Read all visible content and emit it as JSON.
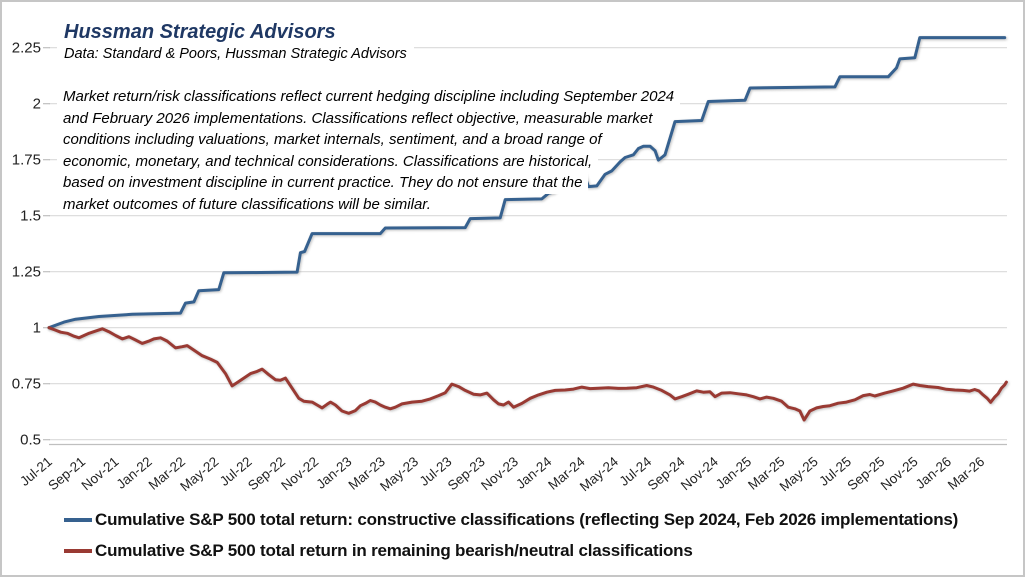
{
  "header": {
    "title": "Hussman Strategic Advisors",
    "subtitle": "Data: Standard & Poors, Hussman Strategic Advisors"
  },
  "annotation": {
    "lines": [
      "Market return/risk classifications reflect current hedging discipline including September 2024",
      "and February 2026 implementations. Classifications reflect objective, measurable market",
      "conditions including valuations, market internals, sentiment, and a broad range of",
      "economic, monetary, and technical considerations. Classifications are historical,",
      "based on investment discipline in current practice. They do not ensure that the",
      "market outcomes of future classifications will be similar."
    ]
  },
  "legend": {
    "items": [
      {
        "key": "constructive",
        "label": "Cumulative S&P 500 total return: constructive classifications (reflecting Sep 2024, Feb 2026 implementations)",
        "color": "#36618F"
      },
      {
        "key": "bearish_neutral",
        "label": "Cumulative S&P 500 total return in remaining bearish/neutral classifications",
        "color": "#993A33"
      }
    ]
  },
  "colors": {
    "accent_blue": "#36618F",
    "accent_red": "#993A33",
    "title_navy": "#1F3864",
    "gridline": "#DADADA",
    "axis_line": "#BFBFBF",
    "tick_mark": "#BFBFBF",
    "axis_text": "#222222",
    "background": "#FFFFFF"
  },
  "chart_data": {
    "type": "line",
    "title": "Hussman Strategic Advisors",
    "subtitle": "Data: Standard & Poors, Hussman Strategic Advisors",
    "xlabel": "",
    "ylabel": "",
    "x_unit": "months since Jul-2021 (0 = Jul-21)",
    "x_tick_month_step": 2,
    "x_tick_labels": [
      "Jul-21",
      "Sep-21",
      "Nov-21",
      "Jan-22",
      "Mar-22",
      "May-22",
      "Jul-22",
      "Sep-22",
      "Nov-22",
      "Jan-23",
      "Mar-23",
      "May-23",
      "Jul-23",
      "Sep-23",
      "Nov-23",
      "Jan-24",
      "Mar-24",
      "May-24",
      "Jul-24",
      "Sep-24",
      "Nov-24",
      "Jan-25",
      "Mar-25",
      "May-25",
      "Jul-25",
      "Sep-25",
      "Nov-25",
      "Jan-26",
      "Mar-26"
    ],
    "y_ticks": [
      0.5,
      0.75,
      1,
      1.25,
      1.5,
      1.75,
      2,
      2.25
    ],
    "ylim": [
      0.5,
      2.32
    ],
    "xlim_months": [
      0,
      57.8
    ],
    "grid": "horizontal",
    "legend_position": "bottom-left",
    "series": [
      {
        "key": "constructive",
        "name": "Cumulative S&P 500 total return: constructive classifications (reflecting Sep 2024, Feb 2026 implementations)",
        "color": "#36618F",
        "points": [
          [
            0,
            1.0
          ],
          [
            0.9,
            1.025
          ],
          [
            1.6,
            1.038
          ],
          [
            3,
            1.05
          ],
          [
            5,
            1.06
          ],
          [
            7.9,
            1.065
          ],
          [
            8.2,
            1.11
          ],
          [
            8.7,
            1.115
          ],
          [
            9,
            1.165
          ],
          [
            10.2,
            1.17
          ],
          [
            10.5,
            1.245
          ],
          [
            14.9,
            1.248
          ],
          [
            15.1,
            1.335
          ],
          [
            15.35,
            1.34
          ],
          [
            15.8,
            1.42
          ],
          [
            19.9,
            1.42
          ],
          [
            20.2,
            1.445
          ],
          [
            25,
            1.447
          ],
          [
            25.3,
            1.487
          ],
          [
            27.1,
            1.49
          ],
          [
            27.4,
            1.572
          ],
          [
            29.6,
            1.575
          ],
          [
            30,
            1.6
          ],
          [
            30.3,
            1.605
          ],
          [
            30.8,
            1.652
          ],
          [
            31.3,
            1.658
          ],
          [
            31.8,
            1.692
          ],
          [
            32.1,
            1.692
          ],
          [
            32.4,
            1.63
          ],
          [
            32.9,
            1.633
          ],
          [
            33.4,
            1.685
          ],
          [
            33.8,
            1.7
          ],
          [
            34.3,
            1.74
          ],
          [
            34.6,
            1.76
          ],
          [
            35.1,
            1.772
          ],
          [
            35.4,
            1.8
          ],
          [
            35.7,
            1.81
          ],
          [
            36.1,
            1.81
          ],
          [
            36.4,
            1.79
          ],
          [
            36.6,
            1.748
          ],
          [
            36.8,
            1.76
          ],
          [
            37,
            1.772
          ],
          [
            37.6,
            1.92
          ],
          [
            39.2,
            1.925
          ],
          [
            39.6,
            2.01
          ],
          [
            41.8,
            2.015
          ],
          [
            42.1,
            2.07
          ],
          [
            47.2,
            2.075
          ],
          [
            47.5,
            2.12
          ],
          [
            50.4,
            2.12
          ],
          [
            50.9,
            2.16
          ],
          [
            51.1,
            2.2
          ],
          [
            52,
            2.205
          ],
          [
            52.3,
            2.295
          ],
          [
            57.4,
            2.295
          ]
        ]
      },
      {
        "key": "bearish_neutral",
        "name": "Cumulative S&P 500 total return in remaining bearish/neutral classifications",
        "color": "#993A33",
        "points": [
          [
            0,
            1.0
          ],
          [
            0.35,
            0.99
          ],
          [
            0.7,
            0.98
          ],
          [
            1.1,
            0.975
          ],
          [
            1.5,
            0.962
          ],
          [
            1.8,
            0.955
          ],
          [
            2.1,
            0.965
          ],
          [
            2.4,
            0.975
          ],
          [
            2.8,
            0.985
          ],
          [
            3.2,
            0.995
          ],
          [
            3.6,
            0.982
          ],
          [
            4,
            0.965
          ],
          [
            4.4,
            0.95
          ],
          [
            4.8,
            0.96
          ],
          [
            5.2,
            0.945
          ],
          [
            5.6,
            0.93
          ],
          [
            6,
            0.94
          ],
          [
            6.3,
            0.95
          ],
          [
            6.7,
            0.955
          ],
          [
            7.1,
            0.94
          ],
          [
            7.6,
            0.91
          ],
          [
            8,
            0.915
          ],
          [
            8.3,
            0.92
          ],
          [
            8.7,
            0.9
          ],
          [
            9.2,
            0.875
          ],
          [
            9.7,
            0.86
          ],
          [
            10.1,
            0.845
          ],
          [
            10.6,
            0.795
          ],
          [
            11,
            0.74
          ],
          [
            11.3,
            0.755
          ],
          [
            11.7,
            0.775
          ],
          [
            12.1,
            0.795
          ],
          [
            12.5,
            0.805
          ],
          [
            12.8,
            0.815
          ],
          [
            13.2,
            0.79
          ],
          [
            13.6,
            0.768
          ],
          [
            13.9,
            0.765
          ],
          [
            14.2,
            0.775
          ],
          [
            14.6,
            0.73
          ],
          [
            15,
            0.685
          ],
          [
            15.3,
            0.672
          ],
          [
            15.8,
            0.668
          ],
          [
            16.1,
            0.655
          ],
          [
            16.4,
            0.642
          ],
          [
            16.7,
            0.658
          ],
          [
            16.9,
            0.668
          ],
          [
            17.2,
            0.655
          ],
          [
            17.6,
            0.628
          ],
          [
            18,
            0.618
          ],
          [
            18.4,
            0.63
          ],
          [
            18.7,
            0.652
          ],
          [
            19,
            0.662
          ],
          [
            19.3,
            0.675
          ],
          [
            19.6,
            0.668
          ],
          [
            19.9,
            0.655
          ],
          [
            20.2,
            0.645
          ],
          [
            20.5,
            0.638
          ],
          [
            20.8,
            0.645
          ],
          [
            21.2,
            0.66
          ],
          [
            21.8,
            0.668
          ],
          [
            22.4,
            0.672
          ],
          [
            22.9,
            0.682
          ],
          [
            23.4,
            0.697
          ],
          [
            23.8,
            0.71
          ],
          [
            24.2,
            0.748
          ],
          [
            24.6,
            0.737
          ],
          [
            25,
            0.72
          ],
          [
            25.5,
            0.703
          ],
          [
            25.9,
            0.7
          ],
          [
            26.3,
            0.708
          ],
          [
            26.7,
            0.678
          ],
          [
            27,
            0.66
          ],
          [
            27.3,
            0.655
          ],
          [
            27.6,
            0.668
          ],
          [
            27.9,
            0.645
          ],
          [
            28.4,
            0.662
          ],
          [
            28.9,
            0.685
          ],
          [
            29.4,
            0.7
          ],
          [
            29.9,
            0.712
          ],
          [
            30.4,
            0.72
          ],
          [
            31,
            0.722
          ],
          [
            31.5,
            0.726
          ],
          [
            32,
            0.735
          ],
          [
            32.5,
            0.728
          ],
          [
            33,
            0.73
          ],
          [
            33.6,
            0.732
          ],
          [
            34.2,
            0.729
          ],
          [
            34.7,
            0.73
          ],
          [
            35.3,
            0.732
          ],
          [
            35.9,
            0.742
          ],
          [
            36.3,
            0.735
          ],
          [
            36.8,
            0.72
          ],
          [
            37.3,
            0.7
          ],
          [
            37.6,
            0.682
          ],
          [
            38,
            0.692
          ],
          [
            38.4,
            0.703
          ],
          [
            38.9,
            0.718
          ],
          [
            39.3,
            0.712
          ],
          [
            39.7,
            0.714
          ],
          [
            40,
            0.692
          ],
          [
            40.4,
            0.708
          ],
          [
            40.9,
            0.71
          ],
          [
            41.4,
            0.705
          ],
          [
            41.9,
            0.7
          ],
          [
            42.3,
            0.692
          ],
          [
            42.7,
            0.682
          ],
          [
            43.1,
            0.69
          ],
          [
            43.5,
            0.685
          ],
          [
            44,
            0.672
          ],
          [
            44.4,
            0.645
          ],
          [
            44.8,
            0.638
          ],
          [
            45.1,
            0.628
          ],
          [
            45.35,
            0.588
          ],
          [
            45.7,
            0.628
          ],
          [
            46.1,
            0.642
          ],
          [
            46.5,
            0.648
          ],
          [
            46.9,
            0.652
          ],
          [
            47.4,
            0.663
          ],
          [
            47.9,
            0.668
          ],
          [
            48.4,
            0.678
          ],
          [
            48.9,
            0.697
          ],
          [
            49.3,
            0.702
          ],
          [
            49.6,
            0.695
          ],
          [
            50.2,
            0.708
          ],
          [
            50.7,
            0.718
          ],
          [
            51.3,
            0.73
          ],
          [
            51.9,
            0.748
          ],
          [
            52.3,
            0.742
          ],
          [
            52.8,
            0.737
          ],
          [
            53.4,
            0.733
          ],
          [
            53.9,
            0.725
          ],
          [
            54.4,
            0.722
          ],
          [
            54.9,
            0.72
          ],
          [
            55.3,
            0.717
          ],
          [
            55.6,
            0.724
          ],
          [
            55.85,
            0.718
          ],
          [
            56.1,
            0.7
          ],
          [
            56.35,
            0.685
          ],
          [
            56.55,
            0.667
          ],
          [
            56.8,
            0.69
          ],
          [
            57,
            0.705
          ],
          [
            57.2,
            0.73
          ],
          [
            57.4,
            0.745
          ],
          [
            57.5,
            0.757
          ]
        ]
      }
    ]
  }
}
